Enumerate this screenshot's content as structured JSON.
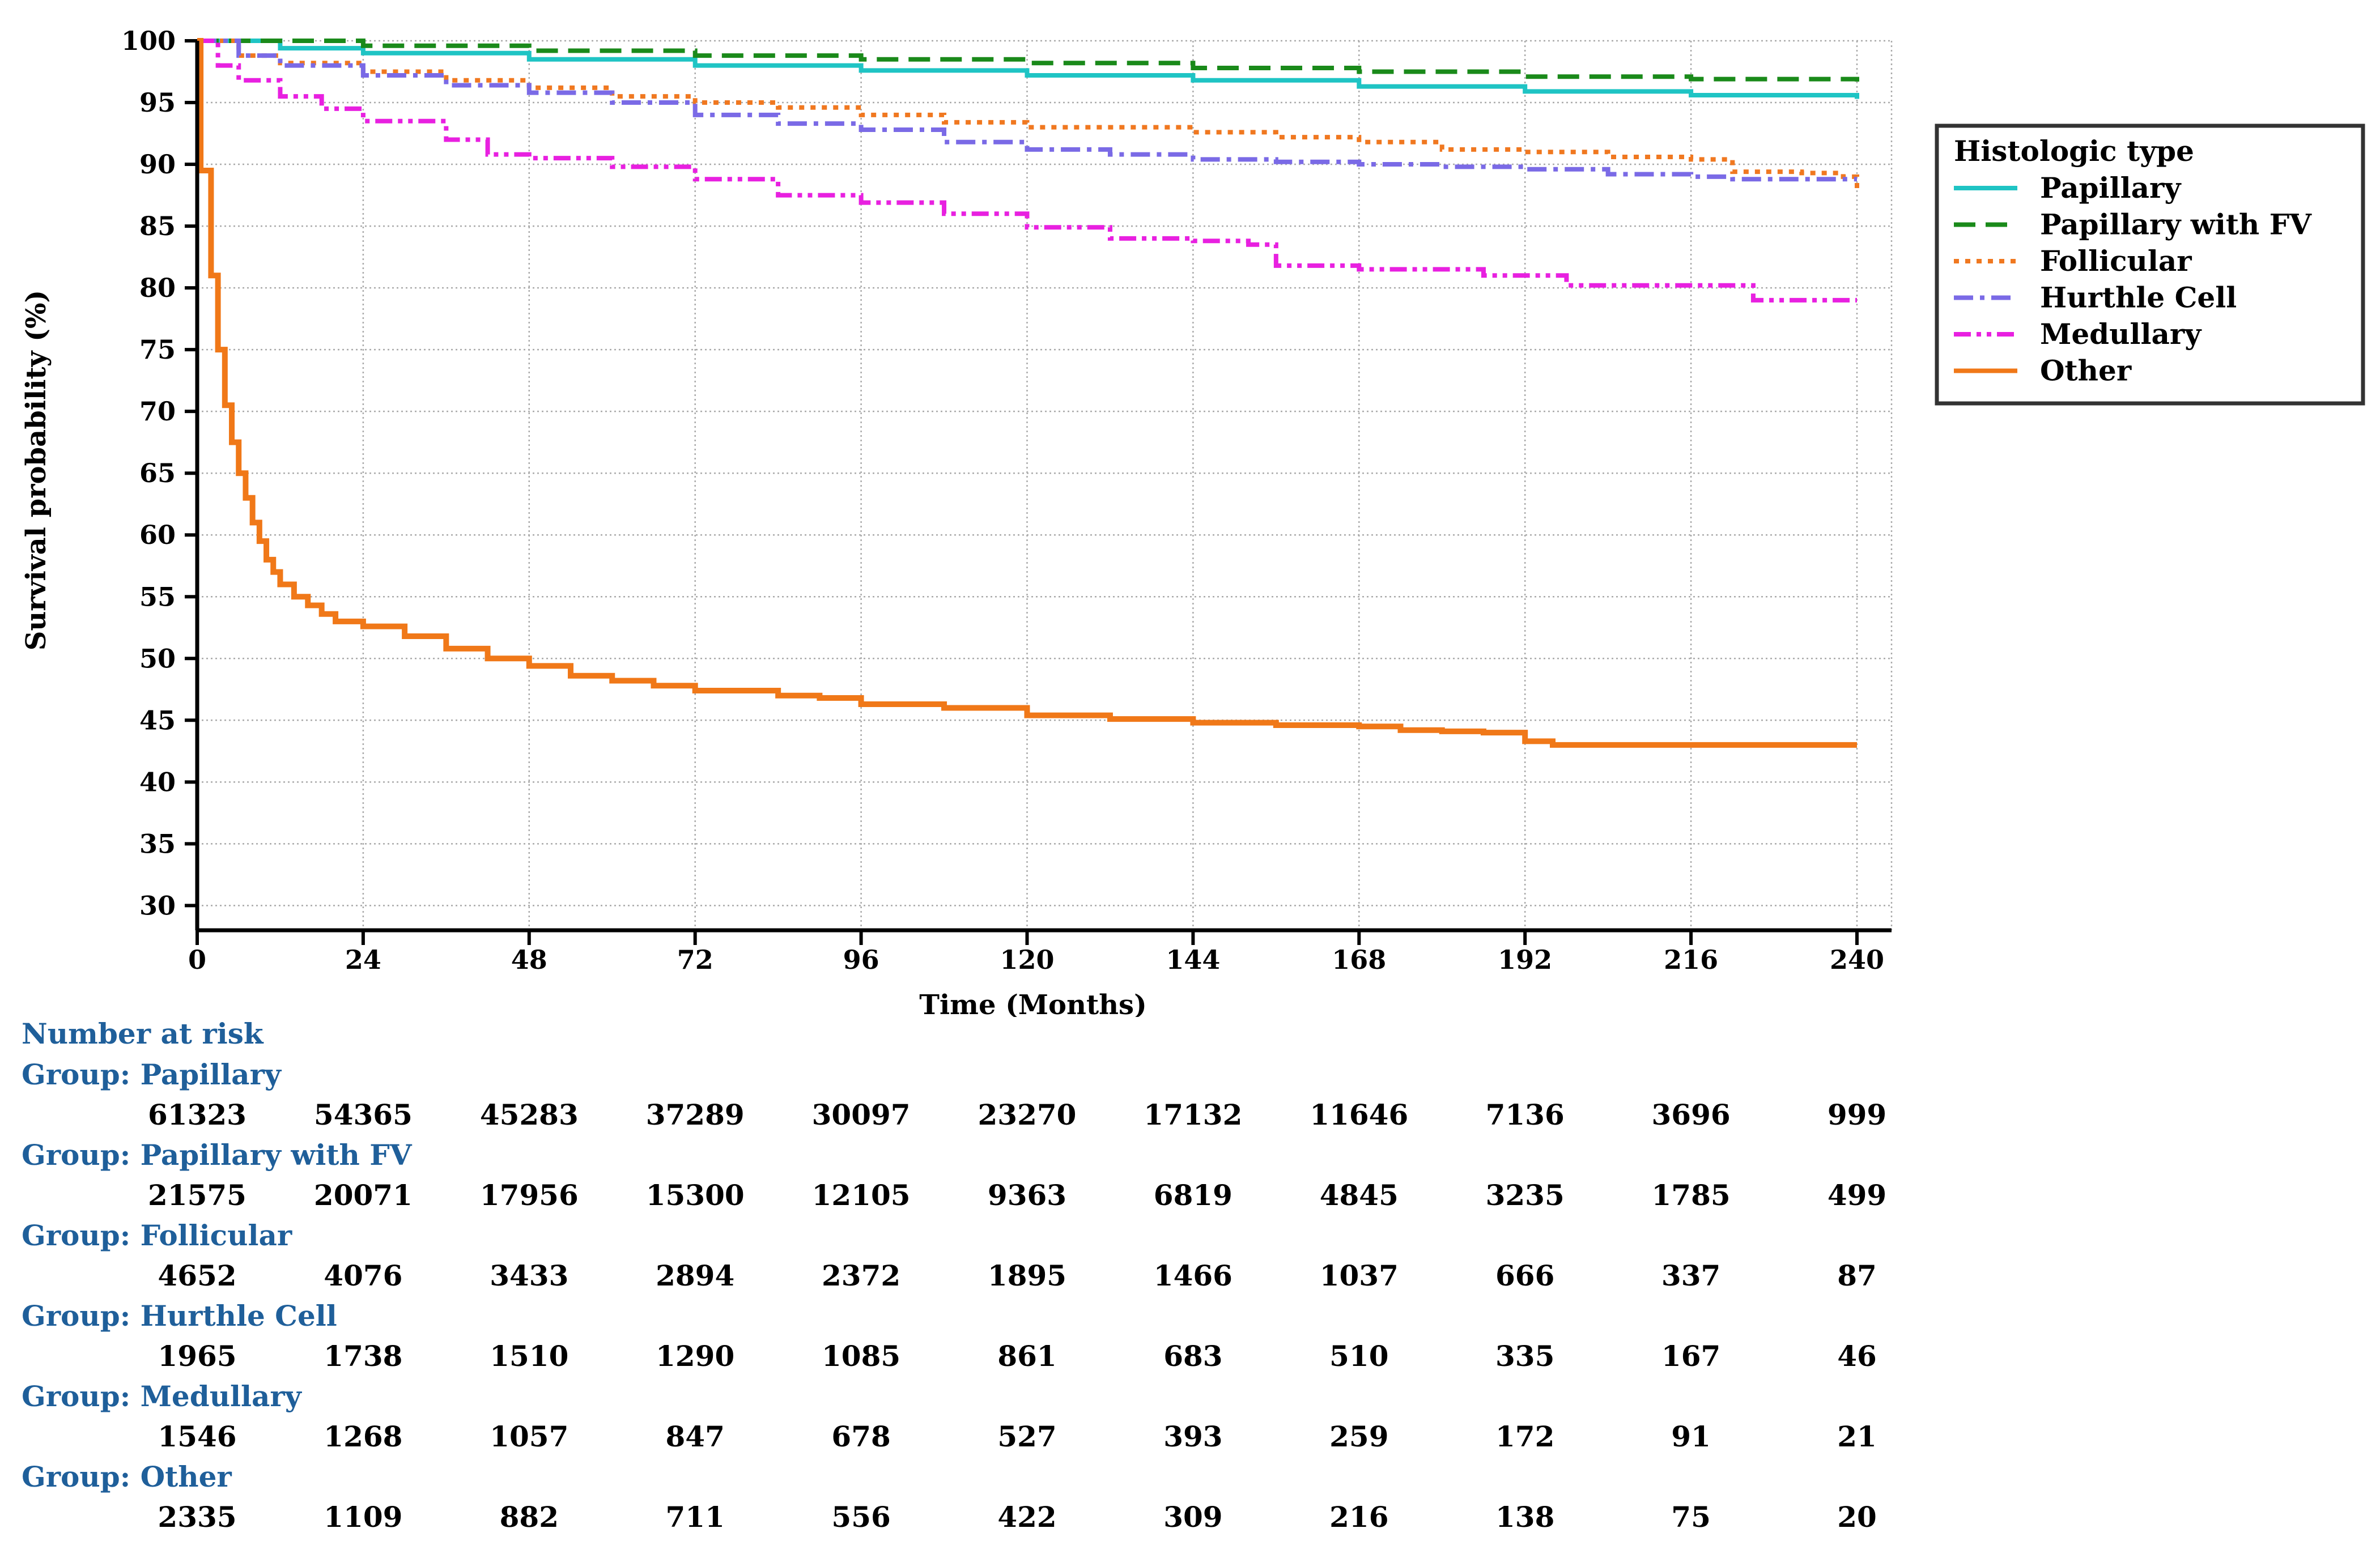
{
  "chart_data": {
    "type": "line",
    "title": "",
    "xlabel": "Time (Months)",
    "ylabel": "Survival probability (%)",
    "xlim": [
      0,
      240
    ],
    "ylim": [
      28,
      100
    ],
    "x_ticks": [
      0,
      24,
      48,
      72,
      96,
      120,
      144,
      168,
      192,
      216,
      240
    ],
    "y_ticks": [
      30,
      35,
      40,
      45,
      50,
      55,
      60,
      65,
      70,
      75,
      80,
      85,
      90,
      95,
      100
    ],
    "grid": true,
    "legend": {
      "title": "Histologic type",
      "placement": "right"
    },
    "series": [
      {
        "name": "Papillary",
        "color": "#1fc4c4",
        "dash": "solid",
        "points": [
          [
            0,
            100
          ],
          [
            12,
            99.4
          ],
          [
            24,
            99.0
          ],
          [
            48,
            98.5
          ],
          [
            72,
            98.0
          ],
          [
            96,
            97.6
          ],
          [
            120,
            97.2
          ],
          [
            144,
            96.8
          ],
          [
            168,
            96.3
          ],
          [
            192,
            95.9
          ],
          [
            216,
            95.6
          ],
          [
            240,
            95.3
          ]
        ]
      },
      {
        "name": "Papillary with FV",
        "color": "#1a8a1a",
        "dash": "dashed",
        "points": [
          [
            0,
            100
          ],
          [
            24,
            99.6
          ],
          [
            48,
            99.2
          ],
          [
            72,
            98.8
          ],
          [
            96,
            98.5
          ],
          [
            120,
            98.2
          ],
          [
            144,
            97.8
          ],
          [
            168,
            97.5
          ],
          [
            192,
            97.1
          ],
          [
            216,
            96.9
          ],
          [
            240,
            96.7
          ]
        ]
      },
      {
        "name": "Follicular",
        "color": "#f07820",
        "dash": "dotted",
        "points": [
          [
            0,
            100
          ],
          [
            6,
            98.8
          ],
          [
            12,
            98.2
          ],
          [
            24,
            97.5
          ],
          [
            36,
            96.8
          ],
          [
            48,
            96.2
          ],
          [
            60,
            95.5
          ],
          [
            72,
            95.0
          ],
          [
            84,
            94.6
          ],
          [
            96,
            94.0
          ],
          [
            108,
            93.4
          ],
          [
            120,
            93.0
          ],
          [
            144,
            92.6
          ],
          [
            156,
            92.2
          ],
          [
            168,
            91.8
          ],
          [
            180,
            91.2
          ],
          [
            192,
            91.0
          ],
          [
            204,
            90.6
          ],
          [
            216,
            90.4
          ],
          [
            222,
            89.4
          ],
          [
            232,
            89.3
          ],
          [
            238,
            89.0
          ],
          [
            240,
            88.0
          ]
        ]
      },
      {
        "name": "Hurthle Cell",
        "color": "#7a6ae6",
        "dash": "dashdot",
        "points": [
          [
            0,
            100
          ],
          [
            6,
            98.8
          ],
          [
            12,
            98.0
          ],
          [
            24,
            97.2
          ],
          [
            36,
            96.4
          ],
          [
            48,
            95.8
          ],
          [
            60,
            95.0
          ],
          [
            72,
            94.0
          ],
          [
            84,
            93.3
          ],
          [
            96,
            92.8
          ],
          [
            108,
            91.8
          ],
          [
            120,
            91.2
          ],
          [
            132,
            90.8
          ],
          [
            144,
            90.4
          ],
          [
            156,
            90.2
          ],
          [
            168,
            90.0
          ],
          [
            180,
            89.8
          ],
          [
            192,
            89.6
          ],
          [
            204,
            89.2
          ],
          [
            216,
            89.0
          ],
          [
            222,
            88.8
          ],
          [
            240,
            88.8
          ]
        ]
      },
      {
        "name": "Medullary",
        "color": "#e820e0",
        "dash": "dashdotdot",
        "points": [
          [
            0,
            100
          ],
          [
            3,
            98.0
          ],
          [
            6,
            96.8
          ],
          [
            12,
            95.5
          ],
          [
            18,
            94.5
          ],
          [
            24,
            93.5
          ],
          [
            36,
            92.0
          ],
          [
            42,
            90.8
          ],
          [
            48,
            90.5
          ],
          [
            60,
            89.8
          ],
          [
            72,
            88.8
          ],
          [
            84,
            87.5
          ],
          [
            96,
            86.9
          ],
          [
            108,
            86.0
          ],
          [
            120,
            84.9
          ],
          [
            132,
            84.0
          ],
          [
            144,
            83.8
          ],
          [
            152,
            83.5
          ],
          [
            156,
            81.8
          ],
          [
            168,
            81.5
          ],
          [
            180,
            81.5
          ],
          [
            186,
            81.0
          ],
          [
            196,
            81.0
          ],
          [
            198,
            80.2
          ],
          [
            216,
            80.2
          ],
          [
            224,
            80.2
          ],
          [
            225,
            79.0
          ],
          [
            240,
            79.0
          ]
        ]
      },
      {
        "name": "Other",
        "color": "#f07818",
        "dash": "solid",
        "points": [
          [
            0,
            100
          ],
          [
            0.5,
            89.5
          ],
          [
            2,
            81
          ],
          [
            3,
            75
          ],
          [
            4,
            70.5
          ],
          [
            5,
            67.5
          ],
          [
            6,
            65
          ],
          [
            7,
            63
          ],
          [
            8,
            61
          ],
          [
            9,
            59.5
          ],
          [
            10,
            58
          ],
          [
            11,
            57
          ],
          [
            12,
            56
          ],
          [
            14,
            55
          ],
          [
            16,
            54.3
          ],
          [
            18,
            53.6
          ],
          [
            20,
            53
          ],
          [
            24,
            52.6
          ],
          [
            30,
            51.8
          ],
          [
            36,
            50.8
          ],
          [
            42,
            50.0
          ],
          [
            48,
            49.4
          ],
          [
            54,
            48.6
          ],
          [
            60,
            48.2
          ],
          [
            66,
            47.8
          ],
          [
            72,
            47.4
          ],
          [
            84,
            47.0
          ],
          [
            90,
            46.8
          ],
          [
            96,
            46.3
          ],
          [
            108,
            46.0
          ],
          [
            120,
            45.4
          ],
          [
            132,
            45.1
          ],
          [
            144,
            44.8
          ],
          [
            156,
            44.6
          ],
          [
            168,
            44.5
          ],
          [
            174,
            44.2
          ],
          [
            180,
            44.1
          ],
          [
            186,
            44.0
          ],
          [
            192,
            43.3
          ],
          [
            196,
            43.0
          ],
          [
            216,
            43.0
          ],
          [
            240,
            43.0
          ]
        ]
      }
    ]
  },
  "risk_table": {
    "heading": "Number at risk",
    "groups": [
      {
        "label": "Group: Papillary",
        "values": [
          "61323",
          "54365",
          "45283",
          "37289",
          "30097",
          "23270",
          "17132",
          "11646",
          "7136",
          "3696",
          "999"
        ]
      },
      {
        "label": "Group: Papillary with FV",
        "values": [
          "21575",
          "20071",
          "17956",
          "15300",
          "12105",
          "9363",
          "6819",
          "4845",
          "3235",
          "1785",
          "499"
        ]
      },
      {
        "label": "Group: Follicular",
        "values": [
          "4652",
          "4076",
          "3433",
          "2894",
          "2372",
          "1895",
          "1466",
          "1037",
          "666",
          "337",
          "87"
        ]
      },
      {
        "label": "Group: Hurthle Cell",
        "values": [
          "1965",
          "1738",
          "1510",
          "1290",
          "1085",
          "861",
          "683",
          "510",
          "335",
          "167",
          "46"
        ]
      },
      {
        "label": "Group: Medullary",
        "values": [
          "1546",
          "1268",
          "1057",
          "847",
          "678",
          "527",
          "393",
          "259",
          "172",
          "91",
          "21"
        ]
      },
      {
        "label": "Group: Other",
        "values": [
          "2335",
          "1109",
          "882",
          "711",
          "556",
          "422",
          "309",
          "216",
          "138",
          "75",
          "20"
        ]
      }
    ]
  }
}
